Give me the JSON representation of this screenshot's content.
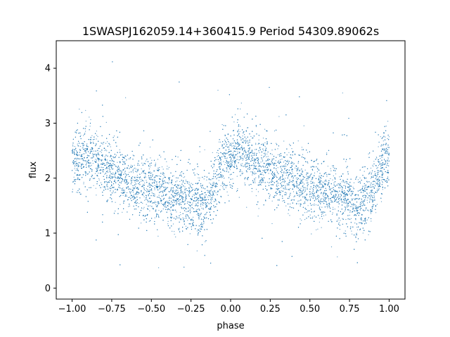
{
  "chart_data": {
    "type": "scatter",
    "title": "1SWASPJ162059.14+360415.9 Period 54309.89062s",
    "xlabel": "phase",
    "ylabel": "flux",
    "xlim": [
      -1.1,
      1.1
    ],
    "ylim": [
      -0.2,
      4.5
    ],
    "x_ticks": [
      -1.0,
      -0.75,
      -0.5,
      -0.25,
      0.0,
      0.25,
      0.5,
      0.75,
      1.0
    ],
    "x_tick_labels": [
      "−1.00",
      "−0.75",
      "−0.50",
      "−0.25",
      "0.00",
      "0.25",
      "0.50",
      "0.75",
      "1.00"
    ],
    "y_ticks": [
      0,
      1,
      2,
      3,
      4
    ],
    "y_tick_labels": [
      "0",
      "1",
      "2",
      "3",
      "4"
    ],
    "grid": false,
    "legend": "none",
    "point_color": "#1f77b4",
    "series": [
      {
        "description_free_trend": true,
        "x": [
          -1.0,
          -0.9,
          -0.8,
          -0.7,
          -0.6,
          -0.5,
          -0.4,
          -0.3,
          -0.2,
          -0.15,
          -0.1,
          -0.05,
          0.0,
          0.05,
          0.1,
          0.15,
          0.2,
          0.3,
          0.4,
          0.5,
          0.6,
          0.7,
          0.8,
          0.85,
          0.9,
          0.95,
          1.0
        ],
        "y": [
          2.3,
          2.4,
          2.2,
          2.05,
          1.9,
          1.8,
          1.7,
          1.6,
          1.55,
          1.5,
          1.85,
          2.3,
          2.4,
          2.5,
          2.4,
          2.3,
          2.2,
          2.05,
          1.95,
          1.85,
          1.75,
          1.65,
          1.55,
          1.5,
          1.8,
          2.2,
          2.4
        ]
      }
    ]
  }
}
